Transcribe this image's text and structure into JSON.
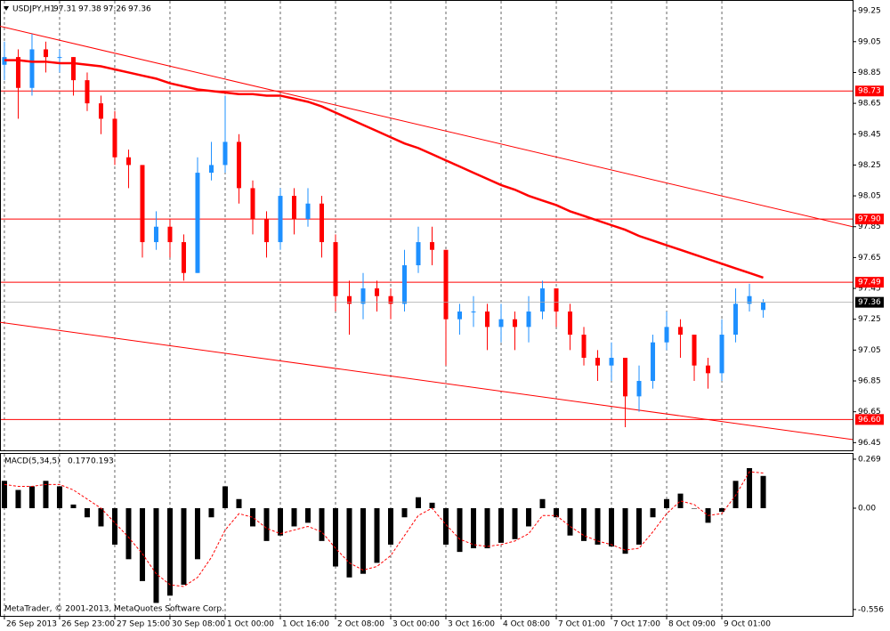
{
  "chart_data": [
    {
      "type": "candlestick",
      "title": "USDJPY,H1",
      "categories": [
        "26 Sep 2013",
        null,
        null,
        null,
        "26 Sep 23:00",
        null,
        null,
        null,
        "27 Sep 15:00",
        null,
        null,
        null,
        "30 Sep 08:00",
        null,
        null,
        null,
        "1 Oct 00:00",
        null,
        null,
        null,
        "1 Oct 16:00",
        null,
        null,
        null,
        "2 Oct 08:00",
        null,
        null,
        null,
        "3 Oct 00:00",
        null,
        null,
        null,
        "3 Oct 16:00",
        null,
        null,
        null,
        "4 Oct 08:00",
        null,
        null,
        null,
        "7 Oct 01:00",
        null,
        null,
        null,
        "7 Oct 17:00",
        null,
        null,
        null,
        "8 Oct 09:00",
        null,
        null,
        null,
        "9 Oct 01:00",
        null,
        null,
        null
      ],
      "series": [
        {
          "up_color": "#1e90ff",
          "down_color": "#ff0000",
          "open": [
            98.9,
            98.95,
            98.75,
            99.0,
            98.95,
            98.95,
            98.8,
            98.65,
            98.55,
            98.3,
            98.25,
            97.75,
            97.85,
            97.75,
            97.55,
            98.2,
            98.25,
            98.4,
            98.1,
            97.9,
            97.75,
            98.05,
            97.9,
            98.0,
            97.75,
            97.4,
            97.35,
            97.45,
            97.4,
            97.35,
            97.6,
            97.75,
            97.7,
            97.25,
            97.3,
            97.3,
            97.2,
            97.25,
            97.2,
            97.3,
            97.45,
            97.3,
            97.15,
            97.0,
            96.95,
            97.0,
            96.75,
            96.85,
            97.1,
            97.2,
            97.15,
            96.95,
            96.9,
            97.15,
            97.35,
            97.31
          ],
          "high": [
            99.05,
            99.0,
            99.1,
            99.05,
            99.0,
            98.95,
            98.85,
            98.7,
            98.6,
            98.35,
            98.25,
            97.95,
            97.9,
            97.8,
            98.3,
            98.4,
            98.7,
            98.45,
            98.15,
            97.95,
            98.1,
            98.1,
            98.1,
            98.05,
            97.8,
            97.5,
            97.55,
            97.5,
            97.45,
            97.7,
            97.85,
            97.85,
            97.7,
            97.35,
            97.4,
            97.35,
            97.35,
            97.3,
            97.4,
            97.5,
            97.45,
            97.35,
            97.2,
            97.05,
            97.1,
            97.0,
            96.95,
            97.15,
            97.3,
            97.25,
            97.15,
            97.0,
            97.25,
            97.45,
            97.48,
            97.38
          ],
          "low": [
            98.8,
            98.55,
            98.7,
            98.85,
            98.85,
            98.7,
            98.6,
            98.45,
            98.25,
            98.1,
            97.65,
            97.7,
            97.65,
            97.5,
            97.55,
            98.15,
            98.2,
            98.0,
            97.8,
            97.65,
            97.7,
            97.8,
            97.85,
            97.65,
            97.3,
            97.15,
            97.25,
            97.3,
            97.25,
            97.3,
            97.55,
            97.6,
            96.95,
            97.15,
            97.2,
            97.05,
            97.1,
            97.05,
            97.1,
            97.25,
            97.2,
            97.05,
            96.95,
            96.85,
            96.85,
            96.55,
            96.65,
            96.8,
            97.05,
            97.0,
            96.85,
            96.8,
            96.85,
            97.1,
            97.3,
            97.26
          ],
          "close": [
            98.95,
            98.75,
            99.0,
            98.95,
            98.95,
            98.8,
            98.65,
            98.55,
            98.3,
            98.25,
            97.75,
            97.85,
            97.75,
            97.55,
            98.2,
            98.25,
            98.4,
            98.1,
            97.9,
            97.75,
            98.05,
            97.9,
            98.0,
            97.75,
            97.4,
            97.35,
            97.45,
            97.4,
            97.35,
            97.6,
            97.75,
            97.7,
            97.25,
            97.3,
            97.3,
            97.2,
            97.25,
            97.2,
            97.3,
            97.45,
            97.3,
            97.15,
            97.0,
            96.95,
            97.0,
            96.75,
            96.85,
            97.1,
            97.2,
            97.15,
            96.95,
            96.9,
            97.15,
            97.35,
            97.4,
            97.36
          ]
        },
        {
          "type": "line",
          "color": "#ff0000",
          "values": [
            98.93,
            98.93,
            98.92,
            98.92,
            98.91,
            98.91,
            98.9,
            98.89,
            98.87,
            98.85,
            98.83,
            98.81,
            98.78,
            98.76,
            98.74,
            98.73,
            98.72,
            98.71,
            98.71,
            98.7,
            98.7,
            98.68,
            98.66,
            98.63,
            98.59,
            98.55,
            98.51,
            98.47,
            98.43,
            98.39,
            98.36,
            98.32,
            98.28,
            98.24,
            98.2,
            98.16,
            98.12,
            98.09,
            98.05,
            98.02,
            97.99,
            97.95,
            97.92,
            97.89,
            97.86,
            97.83,
            97.79,
            97.76,
            97.73,
            97.7,
            97.67,
            97.64,
            97.61,
            97.58,
            97.55,
            97.52
          ]
        }
      ],
      "hlines": [
        {
          "value": 98.73,
          "color": "#ff0000"
        },
        {
          "value": {
            "value": 97.9,
            "label": "97.90"
          },
          "color": "#ff0000"
        },
        {
          "value": 97.49,
          "color": "#ff0000"
        },
        {
          "value": {
            "value": 96.6,
            "label": "96.60"
          },
          "color": "#ff0000"
        }
      ],
      "trendlines": [
        {
          "x": [
            -0.32,
            61.48
          ],
          "y": [
            99.15,
            97.85
          ],
          "color": "#ff0000"
        },
        {
          "x": [
            -0.32,
            61.48
          ],
          "y": [
            97.23,
            96.47
          ],
          "color": "#ff0000"
        }
      ],
      "xlim": [
        -0.32,
        61.48
      ],
      "ylim": [
        96.4,
        99.32
      ],
      "yticks": [
        99.25,
        99.05,
        98.85,
        98.65,
        98.45,
        98.25,
        98.05,
        97.85,
        97.65,
        97.45,
        97.25,
        97.05,
        96.85,
        96.65,
        96.45
      ],
      "grid": true
    },
    {
      "type": "macd",
      "title": "MACD(5,34,5)",
      "series": [
        {
          "type": "bar",
          "color": "#000000",
          "values": [
            0.15,
            0.1,
            0.12,
            0.15,
            0.12,
            0.02,
            -0.05,
            -0.1,
            -0.2,
            -0.28,
            -0.4,
            -0.52,
            -0.48,
            -0.42,
            -0.28,
            -0.05,
            0.12,
            0.05,
            -0.1,
            -0.18,
            -0.15,
            -0.1,
            -0.08,
            -0.18,
            -0.32,
            -0.38,
            -0.36,
            -0.3,
            -0.2,
            -0.05,
            0.06,
            0.03,
            -0.2,
            -0.24,
            -0.22,
            -0.22,
            -0.19,
            -0.17,
            -0.1,
            0.05,
            -0.05,
            -0.15,
            -0.18,
            -0.2,
            -0.21,
            -0.25,
            -0.2,
            -0.05,
            0.05,
            0.08,
            0.0,
            -0.08,
            -0.02,
            0.15,
            0.22,
            0.177
          ]
        },
        {
          "type": "line",
          "color": "#ff0000",
          "values": [
            0.13,
            0.12,
            0.12,
            0.13,
            0.13,
            0.1,
            0.05,
            0.0,
            -0.08,
            -0.16,
            -0.25,
            -0.36,
            -0.42,
            -0.43,
            -0.38,
            -0.27,
            -0.12,
            -0.03,
            -0.05,
            -0.11,
            -0.14,
            -0.12,
            -0.1,
            -0.13,
            -0.22,
            -0.3,
            -0.34,
            -0.32,
            -0.26,
            -0.15,
            -0.04,
            0.0,
            -0.09,
            -0.17,
            -0.2,
            -0.21,
            -0.2,
            -0.18,
            -0.14,
            -0.04,
            -0.04,
            -0.1,
            -0.15,
            -0.18,
            -0.2,
            -0.23,
            -0.22,
            -0.13,
            -0.03,
            0.04,
            0.02,
            -0.04,
            -0.03,
            0.07,
            0.2,
            0.193
          ]
        }
      ],
      "ylim": [
        -0.591,
        0.298
      ],
      "yticks": [
        0.269,
        {
          "value": 0,
          "label": "0.00"
        },
        -0.556
      ],
      "footer": "MetaTrader, © 2001-2013, MetaQuotes Software Corp."
    }
  ]
}
